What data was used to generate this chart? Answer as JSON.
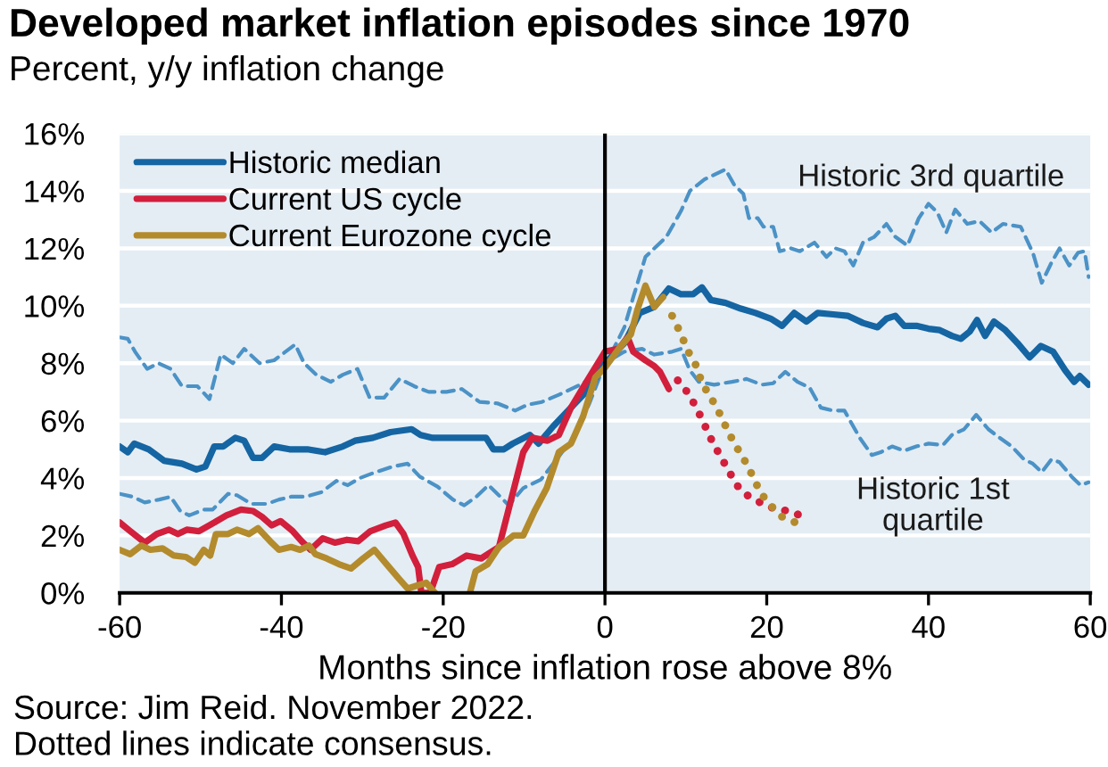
{
  "chart_data": {
    "type": "line",
    "title": "Developed market inflation episodes since 1970",
    "subtitle": "Percent, y/y inflation change",
    "xlabel": "Months since inflation rose above 8%",
    "annotations": [
      "Historic 3rd quartile",
      "Historic 1st\nquartile",
      "Source: Jim Reid. November 2022.",
      "Dotted lines indicate consensus."
    ],
    "xlim": [
      -60,
      60
    ],
    "xticks": [
      -60,
      -40,
      -20,
      0,
      20,
      40,
      60
    ],
    "ylim": [
      0,
      16
    ],
    "yticks": [
      {
        "value": 0,
        "label": "0%"
      },
      {
        "value": 2,
        "label": "2%"
      },
      {
        "value": 4,
        "label": "4%"
      },
      {
        "value": 6,
        "label": "6%"
      },
      {
        "value": 8,
        "label": "8%"
      },
      {
        "value": 10,
        "label": "10%"
      },
      {
        "value": 12,
        "label": "12%"
      },
      {
        "value": 14,
        "label": "14%"
      },
      {
        "value": 16,
        "label": "16%"
      }
    ],
    "grid": "y",
    "legend": "top left",
    "ref_lines": [
      {
        "axis": "x",
        "value": 0,
        "color": "#000000"
      }
    ],
    "series": [
      {
        "color": "#4b92c6",
        "line_style": "dashed",
        "x": [
          -60,
          -59,
          -58.1,
          -56.6,
          -55.2,
          -53.7,
          -52.3,
          -50.4,
          -48.9,
          -47.5,
          -46.0,
          -44.6,
          -42.7,
          -40.9,
          -38.3,
          -37.2,
          -35.7,
          -33.9,
          -32.4,
          -30.6,
          -29.1,
          -27.3,
          -25.4,
          -23.6,
          -21.8,
          -19.6,
          -17.7,
          -15.5,
          -13.3,
          -11.1,
          -9.6,
          -7.8,
          -5.7,
          -2.7,
          0,
          2.4,
          3.5,
          5.0,
          6.1,
          7.6,
          9.4,
          10.5,
          12.3,
          14.9,
          16.0,
          17.1,
          17.8,
          18.9,
          19.6,
          20.8,
          21.6,
          23.0,
          24.1,
          25.9,
          27.4,
          28.5,
          29.6,
          30.7,
          31.9,
          33.3,
          34.8,
          35.9,
          37.4,
          38.8,
          40.0,
          41.1,
          42.2,
          43.3,
          44.8,
          46.3,
          47.8,
          49.2,
          51.4,
          52.9,
          54.0,
          55.2,
          56.2,
          57.4,
          58.5,
          59.3,
          59.8
        ],
        "values": [
          8.9,
          8.85,
          8.4,
          7.8,
          8.0,
          7.8,
          7.2,
          7.2,
          6.75,
          8.3,
          8.0,
          8.5,
          8.0,
          8.1,
          8.65,
          8.0,
          7.6,
          7.35,
          7.6,
          7.8,
          6.8,
          6.8,
          7.45,
          7.2,
          7.0,
          7.0,
          7.1,
          6.65,
          6.6,
          6.35,
          6.55,
          6.65,
          6.9,
          7.3,
          7.9,
          9.25,
          10.3,
          11.7,
          12.0,
          12.4,
          13.3,
          14.0,
          14.4,
          14.75,
          14.2,
          13.9,
          13.05,
          13.05,
          12.75,
          12.75,
          11.9,
          12.0,
          11.9,
          12.2,
          11.7,
          12.0,
          11.9,
          11.4,
          12.2,
          12.4,
          12.85,
          12.4,
          12.1,
          13.05,
          13.55,
          13.25,
          12.55,
          13.35,
          12.85,
          12.95,
          12.55,
          12.85,
          12.75,
          11.85,
          10.8,
          11.5,
          12.0,
          11.4,
          11.85,
          11.9,
          11.0
        ]
      },
      {
        "color": "#4b92c6",
        "line_style": "dashed",
        "x": [
          -60,
          -58.4,
          -56.9,
          -55.1,
          -53.7,
          -52.5,
          -51.4,
          -49.6,
          -48.5,
          -46.6,
          -45.5,
          -43.7,
          -41.8,
          -40.3,
          -38.8,
          -37.0,
          -35.1,
          -33.2,
          -31.8,
          -30.3,
          -28.4,
          -26.2,
          -24.4,
          -22.9,
          -20.7,
          -18.8,
          -17.4,
          -15.9,
          -14.4,
          -13.3,
          -11.9,
          -10.1,
          -7.9,
          -6.4,
          -4.2,
          -2.0,
          0,
          2.4,
          4.6,
          6.1,
          8.3,
          9.4,
          10.5,
          11.6,
          13.5,
          15.7,
          17.5,
          19.4,
          20.8,
          22.3,
          23.8,
          25.3,
          26.7,
          28.2,
          29.6,
          31.5,
          33.0,
          34.1,
          35.5,
          37.0,
          38.5,
          40.0,
          41.8,
          42.9,
          44.4,
          45.9,
          47.4,
          48.8,
          50.3,
          51.8,
          52.9,
          54.0,
          55.2,
          56.2,
          57.7,
          58.8,
          59.8
        ],
        "values": [
          3.45,
          3.35,
          3.15,
          3.25,
          3.35,
          2.85,
          2.7,
          2.9,
          2.9,
          3.45,
          3.4,
          3.1,
          3.1,
          3.25,
          3.35,
          3.35,
          3.5,
          3.9,
          3.75,
          4.0,
          4.2,
          4.4,
          4.5,
          4.05,
          3.7,
          3.25,
          3.05,
          3.35,
          3.75,
          3.45,
          3.05,
          3.65,
          3.95,
          4.5,
          5.3,
          6.55,
          8.0,
          8.4,
          8.5,
          8.3,
          8.4,
          8.5,
          7.75,
          7.35,
          7.25,
          7.35,
          7.45,
          7.25,
          7.3,
          7.7,
          7.35,
          7.15,
          6.45,
          6.35,
          6.35,
          5.4,
          4.8,
          4.9,
          5.1,
          4.95,
          5.1,
          5.2,
          5.15,
          5.5,
          5.7,
          6.2,
          5.7,
          5.4,
          5.1,
          4.65,
          4.5,
          4.2,
          4.65,
          4.55,
          4.05,
          3.75,
          3.85
        ]
      },
      {
        "name": "Historic median",
        "color": "#1565a3",
        "line_style": "solid",
        "x": [
          -60,
          -59,
          -58.2,
          -56.4,
          -54.5,
          -52.3,
          -50.5,
          -49.4,
          -48.3,
          -47.2,
          -45.7,
          -44.6,
          -43.5,
          -42.4,
          -40.9,
          -39.0,
          -36.8,
          -34.6,
          -32.4,
          -30.9,
          -28.7,
          -26.5,
          -23.9,
          -22.8,
          -21.3,
          -19.1,
          -16.9,
          -14.7,
          -13.8,
          -12.5,
          -11.4,
          -9.3,
          -8.2,
          -6.4,
          -4.2,
          -2.0,
          0,
          2.4,
          4.3,
          6.1,
          7.9,
          9.4,
          10.9,
          12.0,
          13.1,
          14.9,
          16.8,
          18.6,
          20.5,
          21.9,
          23.4,
          24.9,
          26.3,
          28.2,
          30.0,
          31.9,
          33.7,
          34.8,
          35.9,
          37.0,
          38.5,
          40.0,
          41.4,
          42.9,
          44.0,
          45.1,
          46.0,
          47.0,
          48.1,
          49.5,
          51.0,
          52.5,
          53.9,
          55.4,
          56.9,
          58.0,
          58.7,
          59.8
        ],
        "values": [
          5.1,
          4.9,
          5.2,
          5.0,
          4.6,
          4.5,
          4.3,
          4.4,
          5.1,
          5.1,
          5.4,
          5.3,
          4.7,
          4.7,
          5.1,
          5.0,
          5.0,
          4.9,
          5.1,
          5.3,
          5.4,
          5.6,
          5.7,
          5.5,
          5.4,
          5.4,
          5.4,
          5.4,
          5.0,
          5.0,
          5.2,
          5.5,
          5.2,
          5.8,
          6.45,
          7.1,
          8.0,
          8.7,
          9.75,
          9.96,
          10.6,
          10.4,
          10.4,
          10.64,
          10.2,
          10.1,
          9.9,
          9.75,
          9.55,
          9.3,
          9.75,
          9.45,
          9.75,
          9.7,
          9.65,
          9.4,
          9.25,
          9.55,
          9.65,
          9.3,
          9.3,
          9.2,
          9.15,
          8.95,
          8.85,
          9.1,
          9.5,
          8.95,
          9.45,
          9.15,
          8.7,
          8.2,
          8.6,
          8.4,
          7.75,
          7.35,
          7.55,
          7.25
        ]
      },
      {
        "name": "Current US cycle",
        "color": "#d21f3c",
        "line_style": "solid",
        "x": [
          -60,
          -58.7,
          -56.9,
          -55.4,
          -53.9,
          -52.8,
          -51.7,
          -50.2,
          -48.3,
          -46.8,
          -45.0,
          -43.5,
          -42.4,
          -41.2,
          -40.1,
          -38.6,
          -37.5,
          -36.4,
          -34.9,
          -33.4,
          -31.9,
          -30.5,
          -29.0,
          -27.1,
          -25.9,
          -24.9,
          -23.8,
          -23.1,
          -22.7,
          -21.6,
          -20.5,
          -18.9,
          -17.1,
          -15.3,
          -13.1,
          -11.6,
          -10.1,
          -9.0,
          -7.1,
          -5.7,
          -4.2,
          -2.4,
          0,
          1.7,
          2.8,
          3.5,
          5.0,
          6.1,
          6.8,
          7.9
        ],
        "values": [
          2.45,
          2.15,
          1.75,
          2.05,
          2.2,
          2.05,
          2.2,
          2.15,
          2.45,
          2.7,
          2.9,
          2.85,
          2.65,
          2.35,
          2.5,
          2.15,
          1.8,
          1.5,
          1.9,
          1.75,
          1.85,
          1.8,
          2.15,
          2.35,
          2.45,
          2.05,
          1.3,
          0.9,
          0,
          0,
          0.9,
          1.0,
          1.3,
          1.2,
          1.6,
          3.25,
          4.9,
          5.4,
          5.3,
          5.5,
          6.45,
          7.3,
          8.4,
          8.5,
          8.9,
          8.4,
          8.1,
          7.9,
          7.7,
          7.1
        ]
      },
      {
        "name": "Current Eurozone cycle",
        "color": "#b38b2d",
        "line_style": "solid",
        "x": [
          -60,
          -58.7,
          -57.3,
          -56.2,
          -54.7,
          -53.3,
          -51.8,
          -50.7,
          -49.6,
          -48.8,
          -48.1,
          -46.6,
          -45.5,
          -44.0,
          -42.9,
          -41.4,
          -40.3,
          -38.8,
          -37.7,
          -36.6,
          -35.8,
          -34.4,
          -32.9,
          -31.4,
          -29.9,
          -28.5,
          -27.0,
          -25.5,
          -24.4,
          -23.3,
          -22.1,
          -21.0,
          -19.0,
          -16.7,
          -16.0,
          -14.5,
          -13.1,
          -11.3,
          -10.1,
          -8.7,
          -7.2,
          -5.7,
          -4.2,
          -2.7,
          -1.2,
          0,
          1.7,
          3.2,
          4.0,
          5.0,
          6.1,
          7.2
        ],
        "values": [
          1.5,
          1.35,
          1.65,
          1.5,
          1.55,
          1.3,
          1.25,
          1.05,
          1.5,
          1.3,
          2.05,
          2.05,
          2.2,
          2.05,
          2.25,
          1.8,
          1.5,
          1.6,
          1.5,
          1.65,
          1.35,
          1.2,
          1.0,
          0.85,
          1.2,
          1.5,
          1.0,
          0.5,
          0.15,
          0.25,
          0.35,
          0,
          null,
          0,
          0.75,
          1.0,
          1.6,
          2.0,
          2.0,
          2.85,
          3.65,
          4.9,
          5.2,
          6.15,
          7.5,
          7.85,
          8.5,
          9.0,
          9.85,
          10.7,
          9.96,
          10.3
        ]
      },
      {
        "color": "#d21f3c",
        "line_style": "dotted",
        "x": [
          9.0,
          10.3,
          11.4,
          12.4,
          13.3,
          14.3,
          15.3,
          16.3,
          17.6,
          19.5,
          21.3,
          22.9,
          24.9
        ],
        "values": [
          7.4,
          6.95,
          6.4,
          5.8,
          5.25,
          4.75,
          4.25,
          3.75,
          3.4,
          3.1,
          2.9,
          2.85,
          2.6
        ]
      },
      {
        "color": "#b38b2d",
        "line_style": "dotted",
        "x": [
          8.3,
          9.3,
          10.3,
          11.3,
          12.0,
          13.0,
          14.0,
          15.1,
          16.0,
          17.1,
          18.3,
          19.2,
          20.3,
          21.9,
          24.0
        ],
        "values": [
          9.65,
          9.07,
          8.4,
          7.9,
          7.3,
          6.85,
          6.35,
          5.7,
          5.2,
          4.7,
          4.05,
          3.5,
          3.1,
          2.65,
          2.4
        ]
      }
    ]
  }
}
